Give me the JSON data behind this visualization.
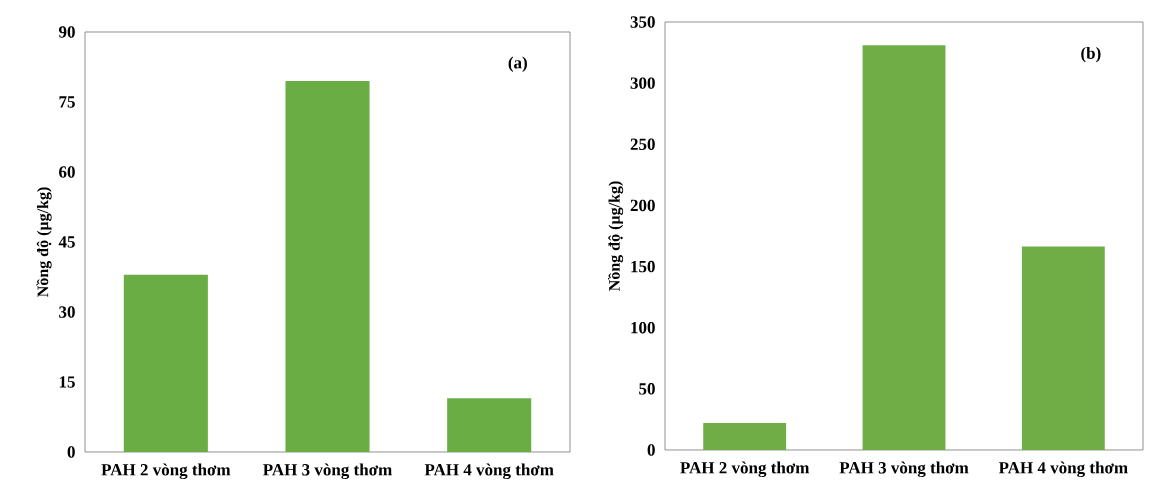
{
  "chart_data": [
    {
      "type": "bar",
      "categories": [
        "PAH 2 vòng thơm",
        "PAH 3 vòng thơm",
        "PAH 4 vòng thơm"
      ],
      "values": [
        38,
        79.5,
        11.5
      ],
      "color": "#6aad45",
      "ylabel": "Nồng độ (µg/kg)",
      "ylim": [
        0,
        90
      ],
      "yticks": [
        0,
        15,
        30,
        45,
        60,
        75,
        90
      ],
      "annotations": [
        "(a)"
      ]
    },
    {
      "type": "bar",
      "categories": [
        "PAH 2 vòng thơm",
        "PAH 3 vòng thơm",
        "PAH 4 vòng thơm"
      ],
      "values": [
        22,
        331,
        166.5
      ],
      "color": "#70ad47",
      "ylabel": "Nồng độ (µg/kg)",
      "ylim": [
        0,
        350
      ],
      "yticks": [
        0,
        50,
        100,
        150,
        200,
        250,
        300,
        350
      ],
      "annotations": [
        "(b)"
      ]
    }
  ]
}
